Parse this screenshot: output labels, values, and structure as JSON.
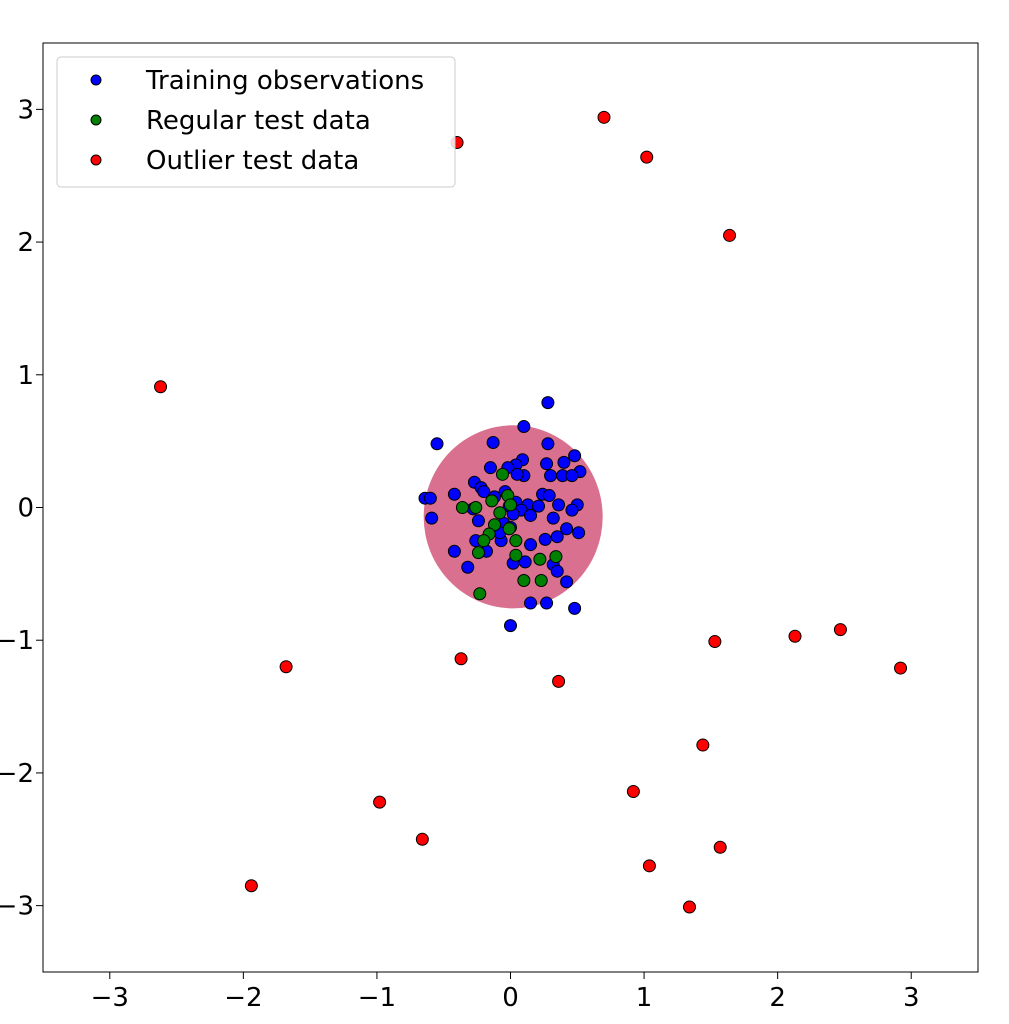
{
  "chart_data": {
    "type": "scatter",
    "xlim": [
      -3.5,
      3.5
    ],
    "ylim": [
      -3.5,
      3.5
    ],
    "x_ticks": [
      {
        "value": -3,
        "label": "−3"
      },
      {
        "value": -2,
        "label": "−2"
      },
      {
        "value": -1,
        "label": "−1"
      },
      {
        "value": 0,
        "label": "0"
      },
      {
        "value": 1,
        "label": "1"
      },
      {
        "value": 2,
        "label": "2"
      },
      {
        "value": 3,
        "label": "3"
      }
    ],
    "y_ticks": [
      {
        "value": 3,
        "label": "3"
      },
      {
        "value": 2,
        "label": "2"
      },
      {
        "value": 1,
        "label": "1"
      },
      {
        "value": 0,
        "label": "0"
      },
      {
        "value": -1,
        "label": "−1"
      },
      {
        "value": -2,
        "label": "−2"
      },
      {
        "value": -3,
        "label": "−3"
      }
    ],
    "grid": false,
    "legend_position": "top-left",
    "decision_region": {
      "shape": "ellipse",
      "center": [
        0.02,
        -0.07
      ],
      "radius_x": 0.67,
      "radius_y": 0.69,
      "color": "#d9708f"
    },
    "series": [
      {
        "name": "Training observations",
        "color": "#0000ff",
        "points": [
          [
            0.28,
            0.79
          ],
          [
            -0.55,
            0.48
          ],
          [
            -0.13,
            0.49
          ],
          [
            0.1,
            0.61
          ],
          [
            0.28,
            0.48
          ],
          [
            0.48,
            0.39
          ],
          [
            0.4,
            0.34
          ],
          [
            0.27,
            0.33
          ],
          [
            0.09,
            0.36
          ],
          [
            0.04,
            0.32
          ],
          [
            -0.15,
            0.3
          ],
          [
            -0.02,
            0.3
          ],
          [
            0.52,
            0.27
          ],
          [
            0.39,
            0.24
          ],
          [
            0.3,
            0.24
          ],
          [
            0.46,
            0.24
          ],
          [
            0.1,
            0.24
          ],
          [
            0.05,
            0.25
          ],
          [
            -0.27,
            0.19
          ],
          [
            -0.22,
            0.15
          ],
          [
            -0.2,
            0.12
          ],
          [
            -0.04,
            0.12
          ],
          [
            -0.12,
            0.08
          ],
          [
            0.24,
            0.1
          ],
          [
            0.29,
            0.09
          ],
          [
            0.04,
            0.04
          ],
          [
            -0.42,
            0.1
          ],
          [
            -0.64,
            0.07
          ],
          [
            -0.6,
            0.07
          ],
          [
            0.36,
            0.02
          ],
          [
            0.5,
            0.02
          ],
          [
            0.13,
            0.02
          ],
          [
            0.21,
            0.01
          ],
          [
            -0.01,
            0.01
          ],
          [
            0.08,
            -0.02
          ],
          [
            0.02,
            -0.05
          ],
          [
            -0.28,
            -0.01
          ],
          [
            0.46,
            -0.02
          ],
          [
            0.15,
            -0.06
          ],
          [
            0.32,
            -0.08
          ],
          [
            -0.59,
            -0.08
          ],
          [
            -0.24,
            -0.1
          ],
          [
            -0.05,
            -0.12
          ],
          [
            0.0,
            -0.15
          ],
          [
            0.42,
            -0.16
          ],
          [
            0.51,
            -0.19
          ],
          [
            0.35,
            -0.22
          ],
          [
            0.26,
            -0.24
          ],
          [
            -0.26,
            -0.25
          ],
          [
            -0.07,
            -0.25
          ],
          [
            0.15,
            -0.28
          ],
          [
            -0.42,
            -0.33
          ],
          [
            -0.18,
            -0.33
          ],
          [
            0.04,
            -0.39
          ],
          [
            0.11,
            -0.41
          ],
          [
            0.32,
            -0.43
          ],
          [
            -0.32,
            -0.45
          ],
          [
            0.35,
            -0.48
          ],
          [
            0.42,
            -0.56
          ],
          [
            0.15,
            -0.72
          ],
          [
            0.27,
            -0.72
          ],
          [
            0.48,
            -0.76
          ],
          [
            0.0,
            -0.89
          ],
          [
            0.02,
            -0.42
          ],
          [
            -0.08,
            -0.19
          ]
        ]
      },
      {
        "name": "Regular test data",
        "color": "#008000",
        "points": [
          [
            -0.06,
            0.25
          ],
          [
            -0.02,
            0.09
          ],
          [
            -0.14,
            0.05
          ],
          [
            0.0,
            0.02
          ],
          [
            -0.36,
            0.0
          ],
          [
            -0.26,
            0.0
          ],
          [
            -0.08,
            -0.04
          ],
          [
            -0.12,
            -0.13
          ],
          [
            -0.01,
            -0.16
          ],
          [
            -0.16,
            -0.2
          ],
          [
            0.04,
            -0.25
          ],
          [
            -0.2,
            -0.25
          ],
          [
            -0.24,
            -0.34
          ],
          [
            0.04,
            -0.36
          ],
          [
            0.22,
            -0.39
          ],
          [
            0.34,
            -0.37
          ],
          [
            0.1,
            -0.55
          ],
          [
            0.23,
            -0.55
          ],
          [
            -0.23,
            -0.65
          ]
        ]
      },
      {
        "name": "Outlier test data",
        "color": "#ff0000",
        "points": [
          [
            -0.4,
            2.75
          ],
          [
            0.7,
            2.94
          ],
          [
            1.02,
            2.64
          ],
          [
            1.64,
            2.05
          ],
          [
            -2.62,
            0.91
          ],
          [
            -1.68,
            -1.2
          ],
          [
            -0.37,
            -1.14
          ],
          [
            0.36,
            -1.31
          ],
          [
            1.53,
            -1.01
          ],
          [
            2.13,
            -0.97
          ],
          [
            2.47,
            -0.92
          ],
          [
            2.92,
            -1.21
          ],
          [
            1.44,
            -1.79
          ],
          [
            0.92,
            -2.14
          ],
          [
            -0.98,
            -2.22
          ],
          [
            -0.66,
            -2.5
          ],
          [
            1.57,
            -2.56
          ],
          [
            1.04,
            -2.7
          ],
          [
            -1.94,
            -2.85
          ],
          [
            1.34,
            -3.01
          ]
        ]
      }
    ]
  }
}
